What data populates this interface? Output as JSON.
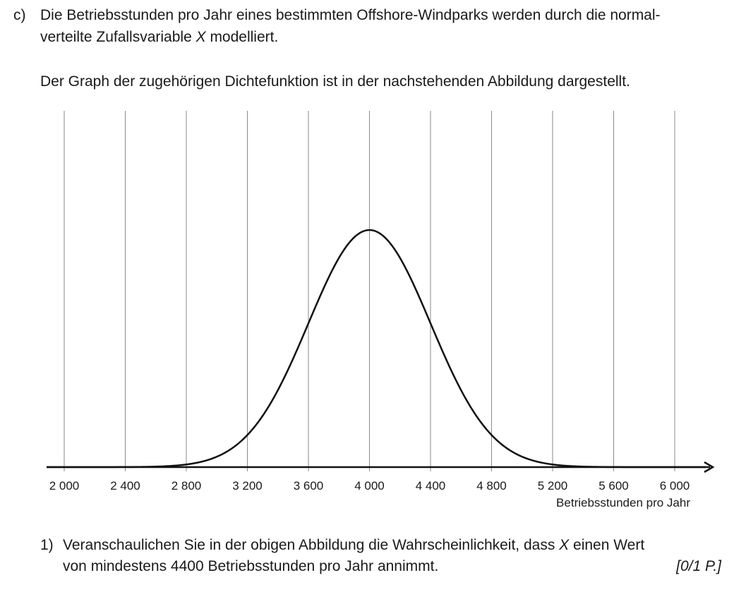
{
  "task": {
    "label": "c)",
    "intro_line1_a": "Die Betriebsstunden pro Jahr eines bestimmten Offshore-Windparks werden durch die normal-",
    "intro_line2_a": "verteilte Zufallsvariable ",
    "intro_var": "X",
    "intro_line2_b": " modelliert.",
    "intro_line3": "Der Graph der zugehörigen Dichtefunktion ist in der nachstehenden Abbildung dargestellt."
  },
  "question": {
    "number": "1)",
    "line1_a": "Veranschaulichen Sie in der obigen Abbildung die Wahrscheinlichkeit, dass ",
    "line1_var": "X",
    "line1_b": " einen Wert",
    "line2": "von mindestens 4400 Betriebsstunden pro Jahr annimmt.",
    "points": "[0/1 P.]"
  },
  "chart_data": {
    "type": "line",
    "curve": "normal_density",
    "mean": 4000,
    "sd": 400,
    "xlim": [
      2000,
      6000
    ],
    "x_ticks": [
      2000,
      2400,
      2800,
      3200,
      3600,
      4000,
      4400,
      4800,
      5200,
      5600,
      6000
    ],
    "x_tick_labels": [
      "2 000",
      "2 400",
      "2 800",
      "3 200",
      "3 600",
      "4 000",
      "4 400",
      "4 800",
      "5 200",
      "5 600",
      "6 000"
    ],
    "xlabel": "Betriebsstunden pro Jahr",
    "ylabel": "",
    "grid": "vertical",
    "colors": {
      "curve": "#111111",
      "grid": "#8a8a8a",
      "axis": "#111111"
    }
  }
}
